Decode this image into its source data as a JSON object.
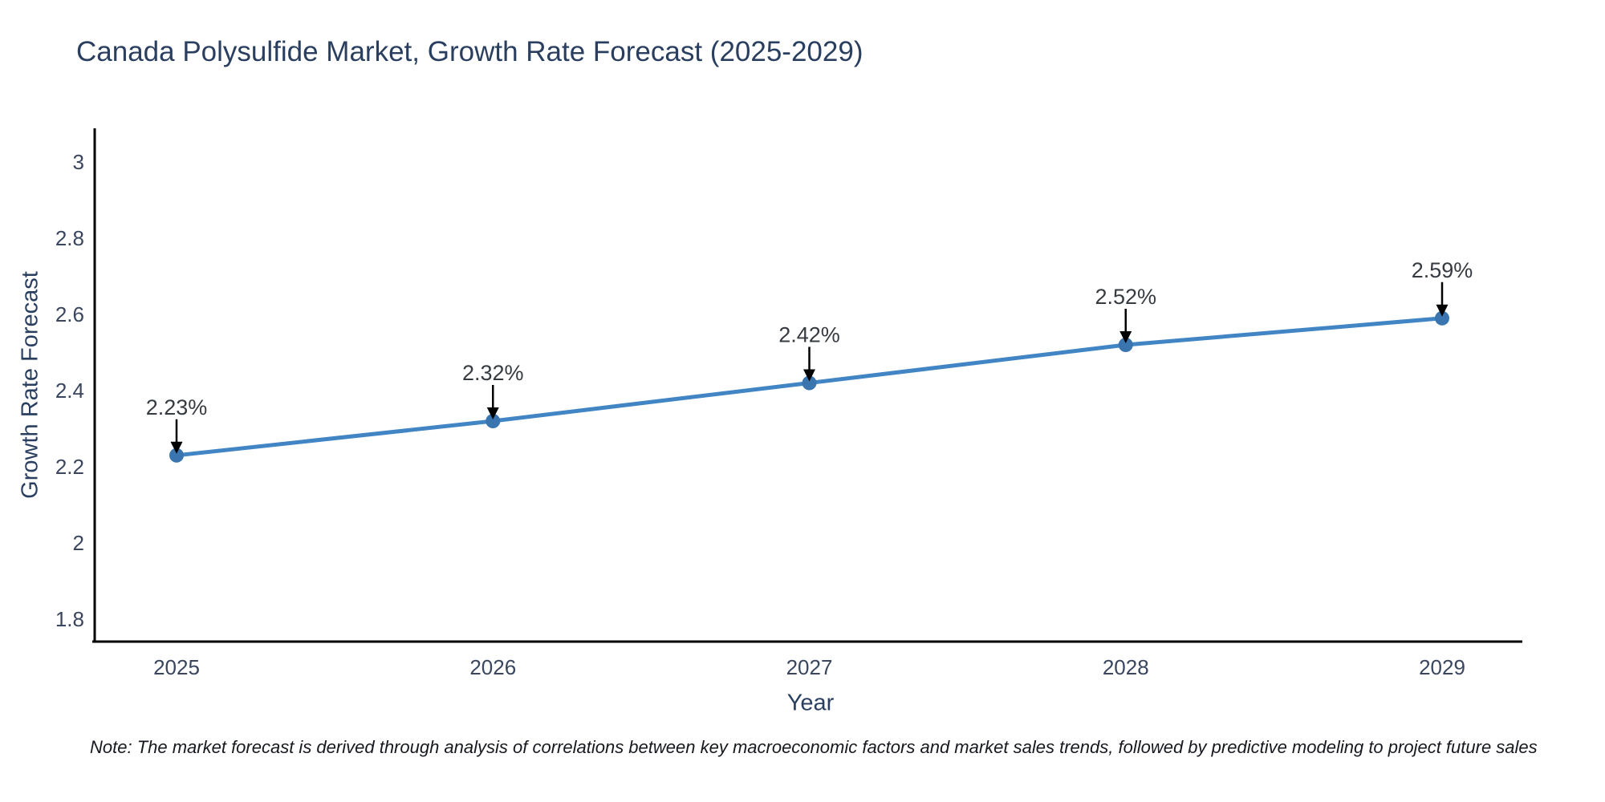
{
  "title": "Canada Polysulfide Market, Growth Rate Forecast (2025-2029)",
  "note": "Note: The market forecast is derived through analysis of correlations between key macroeconomic factors and market sales trends, followed by predictive modeling to project future sales",
  "chart_data": {
    "type": "line",
    "title": "Canada Polysulfide Market, Growth Rate Forecast (2025-2029)",
    "xlabel": "Year",
    "ylabel": "Growth Rate Forecast",
    "x": [
      2025,
      2026,
      2027,
      2028,
      2029
    ],
    "x_tick_labels": [
      "2025",
      "2026",
      "2027",
      "2028",
      "2029"
    ],
    "values": [
      2.23,
      2.32,
      2.42,
      2.52,
      2.59
    ],
    "point_labels": [
      "2.23%",
      "2.32%",
      "2.42%",
      "2.52%",
      "2.59%"
    ],
    "y_ticks": [
      3,
      2.8,
      2.6,
      2.4,
      2.2,
      2,
      1.8
    ],
    "y_tick_labels": [
      "3",
      "2.8",
      "2.6",
      "2.4",
      "2.2",
      "2",
      "1.8"
    ],
    "ylim": [
      1.74,
      3.09
    ],
    "xlim": [
      2024.73,
      2029.25
    ],
    "grid": false,
    "legend": "none",
    "colors": {
      "line": "#4185c4",
      "marker": "#3a75b0",
      "axis": "#000000",
      "tick_text": "#39465e",
      "annotation_text": "#363b41",
      "annotation_arrow": "#000000",
      "title_text": "#2a3f5f",
      "background": "#ffffff"
    }
  }
}
